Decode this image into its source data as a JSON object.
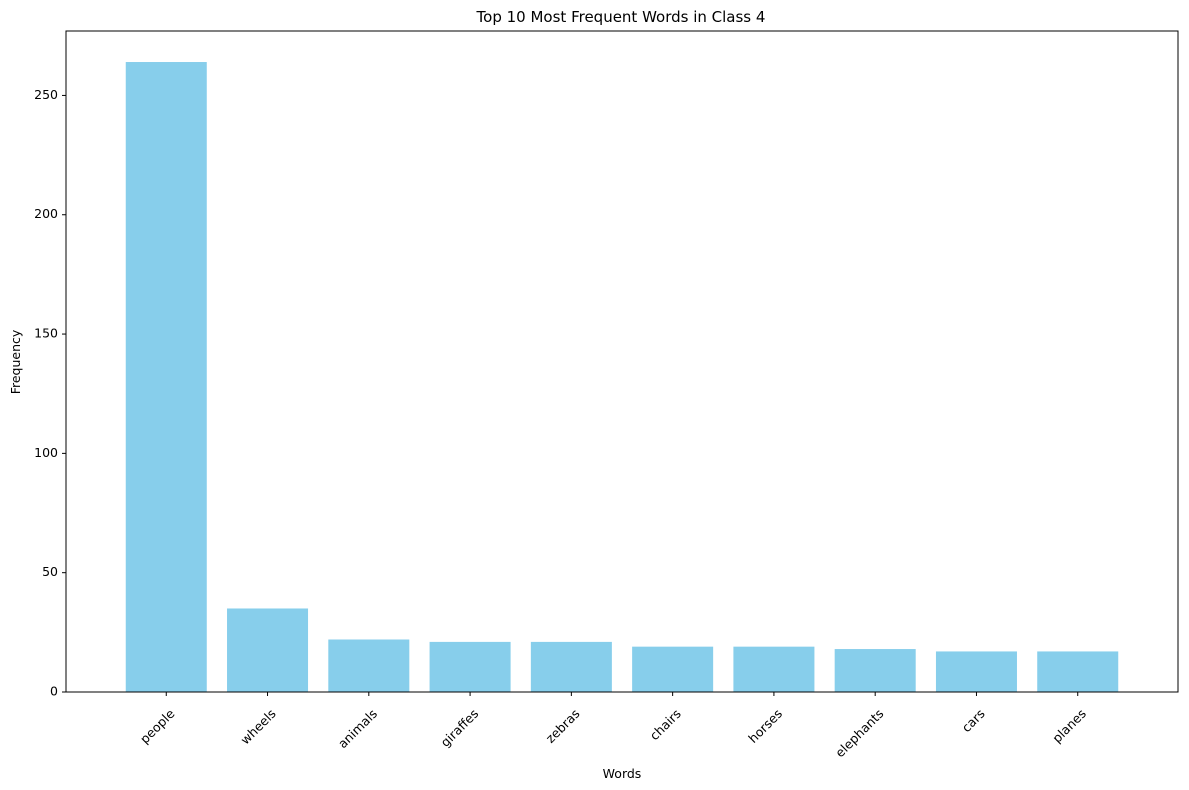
{
  "chart_data": {
    "type": "bar",
    "title": "Top 10 Most Frequent Words in Class 4",
    "xlabel": "Words",
    "ylabel": "Frequency",
    "categories": [
      "people",
      "wheels",
      "animals",
      "giraffes",
      "zebras",
      "chairs",
      "horses",
      "elephants",
      "cars",
      "planes"
    ],
    "values": [
      264,
      35,
      22,
      21,
      21,
      19,
      19,
      18,
      17,
      17
    ],
    "ylim": [
      0,
      277
    ],
    "yticks": [
      0,
      50,
      100,
      150,
      200,
      250
    ],
    "bar_color": "#87ceeb",
    "grid": false,
    "legend": false
  }
}
